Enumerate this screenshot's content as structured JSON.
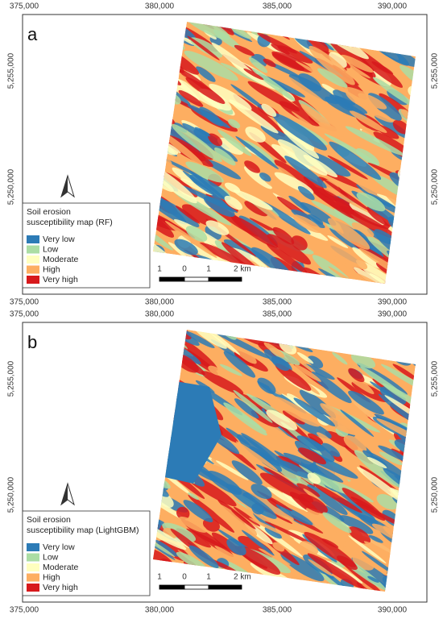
{
  "panels": [
    {
      "label": "a",
      "x_ticks": [
        "375,000",
        "380,000",
        "385,000",
        "390,000"
      ],
      "y_ticks": [
        "5,255,000",
        "5,250,000"
      ],
      "legend": {
        "title": [
          "Soil erosion",
          "susceptibility map (RF)"
        ],
        "items": [
          {
            "label": "Very low",
            "color": "#2c7bb6"
          },
          {
            "label": "Low",
            "color": "#abdda4"
          },
          {
            "label": "Moderate",
            "color": "#ffffbf"
          },
          {
            "label": "High",
            "color": "#fdae61"
          },
          {
            "label": "Very high",
            "color": "#d7191c"
          }
        ]
      },
      "scale_bar": [
        "1",
        "0",
        "1",
        "2 km"
      ]
    },
    {
      "label": "b",
      "x_ticks": [
        "375,000",
        "380,000",
        "385,000",
        "390,000"
      ],
      "y_ticks": [
        "5,255,000",
        "5,250,000"
      ],
      "legend": {
        "title": [
          "Soil erosion",
          "susceptibility map (LightGBM)"
        ],
        "items": [
          {
            "label": "Very low",
            "color": "#2c7bb6"
          },
          {
            "label": "Low",
            "color": "#abdda4"
          },
          {
            "label": "Moderate",
            "color": "#ffffbf"
          },
          {
            "label": "High",
            "color": "#fdae61"
          },
          {
            "label": "Very high",
            "color": "#d7191c"
          }
        ]
      },
      "scale_bar": [
        "1",
        "0",
        "1",
        "2 km"
      ]
    }
  ]
}
